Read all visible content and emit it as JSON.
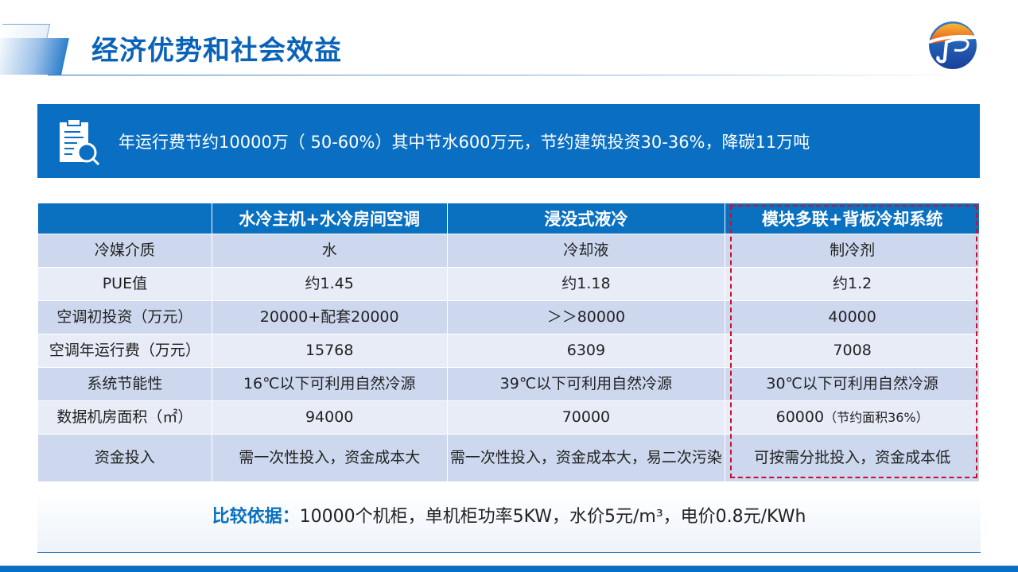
{
  "header": {
    "title": "经济优势和社会效益"
  },
  "banner": {
    "icon": "clipboard-search-icon",
    "text": "年运行费节约10000万（ 50-60%）其中节水600万元，节约建筑投资30-36%，降碳11万吨"
  },
  "table": {
    "columns": [
      "",
      "水冷主机+水冷房间空调",
      "浸没式液冷",
      "模块多联+背板冷却系统"
    ],
    "rows": [
      [
        "冷媒介质",
        "水",
        "冷却液",
        "制冷剂"
      ],
      [
        "PUE值",
        "约1.45",
        "约1.18",
        "约1.2"
      ],
      [
        "空调初投资（万元）",
        "20000+配套20000",
        "＞＞80000",
        "40000"
      ],
      [
        "空调年运行费（万元）",
        "15768",
        "6309",
        "7008"
      ],
      [
        "系统节能性",
        "16℃以下可利用自然冷源",
        "39℃以下可利用自然冷源",
        "30℃以下可利用自然冷源"
      ],
      [
        "数据机房面积（㎡）",
        "94000",
        "70000",
        "60000"
      ],
      [
        "资金投入",
        "需一次性投入，资金成本大",
        "需一次性投入，资金成本大，易二次污染",
        "可按需分批投入，资金成本低"
      ]
    ],
    "area_note": "（节约面积36%）",
    "highlight_color": "#c8102e"
  },
  "basis": {
    "label": "比较依据：",
    "text": "10000个机柜，单机柜功率5KW，水价5元/m³，电价0.8元/KWh"
  },
  "colors": {
    "primary": "#0a6fc2"
  }
}
